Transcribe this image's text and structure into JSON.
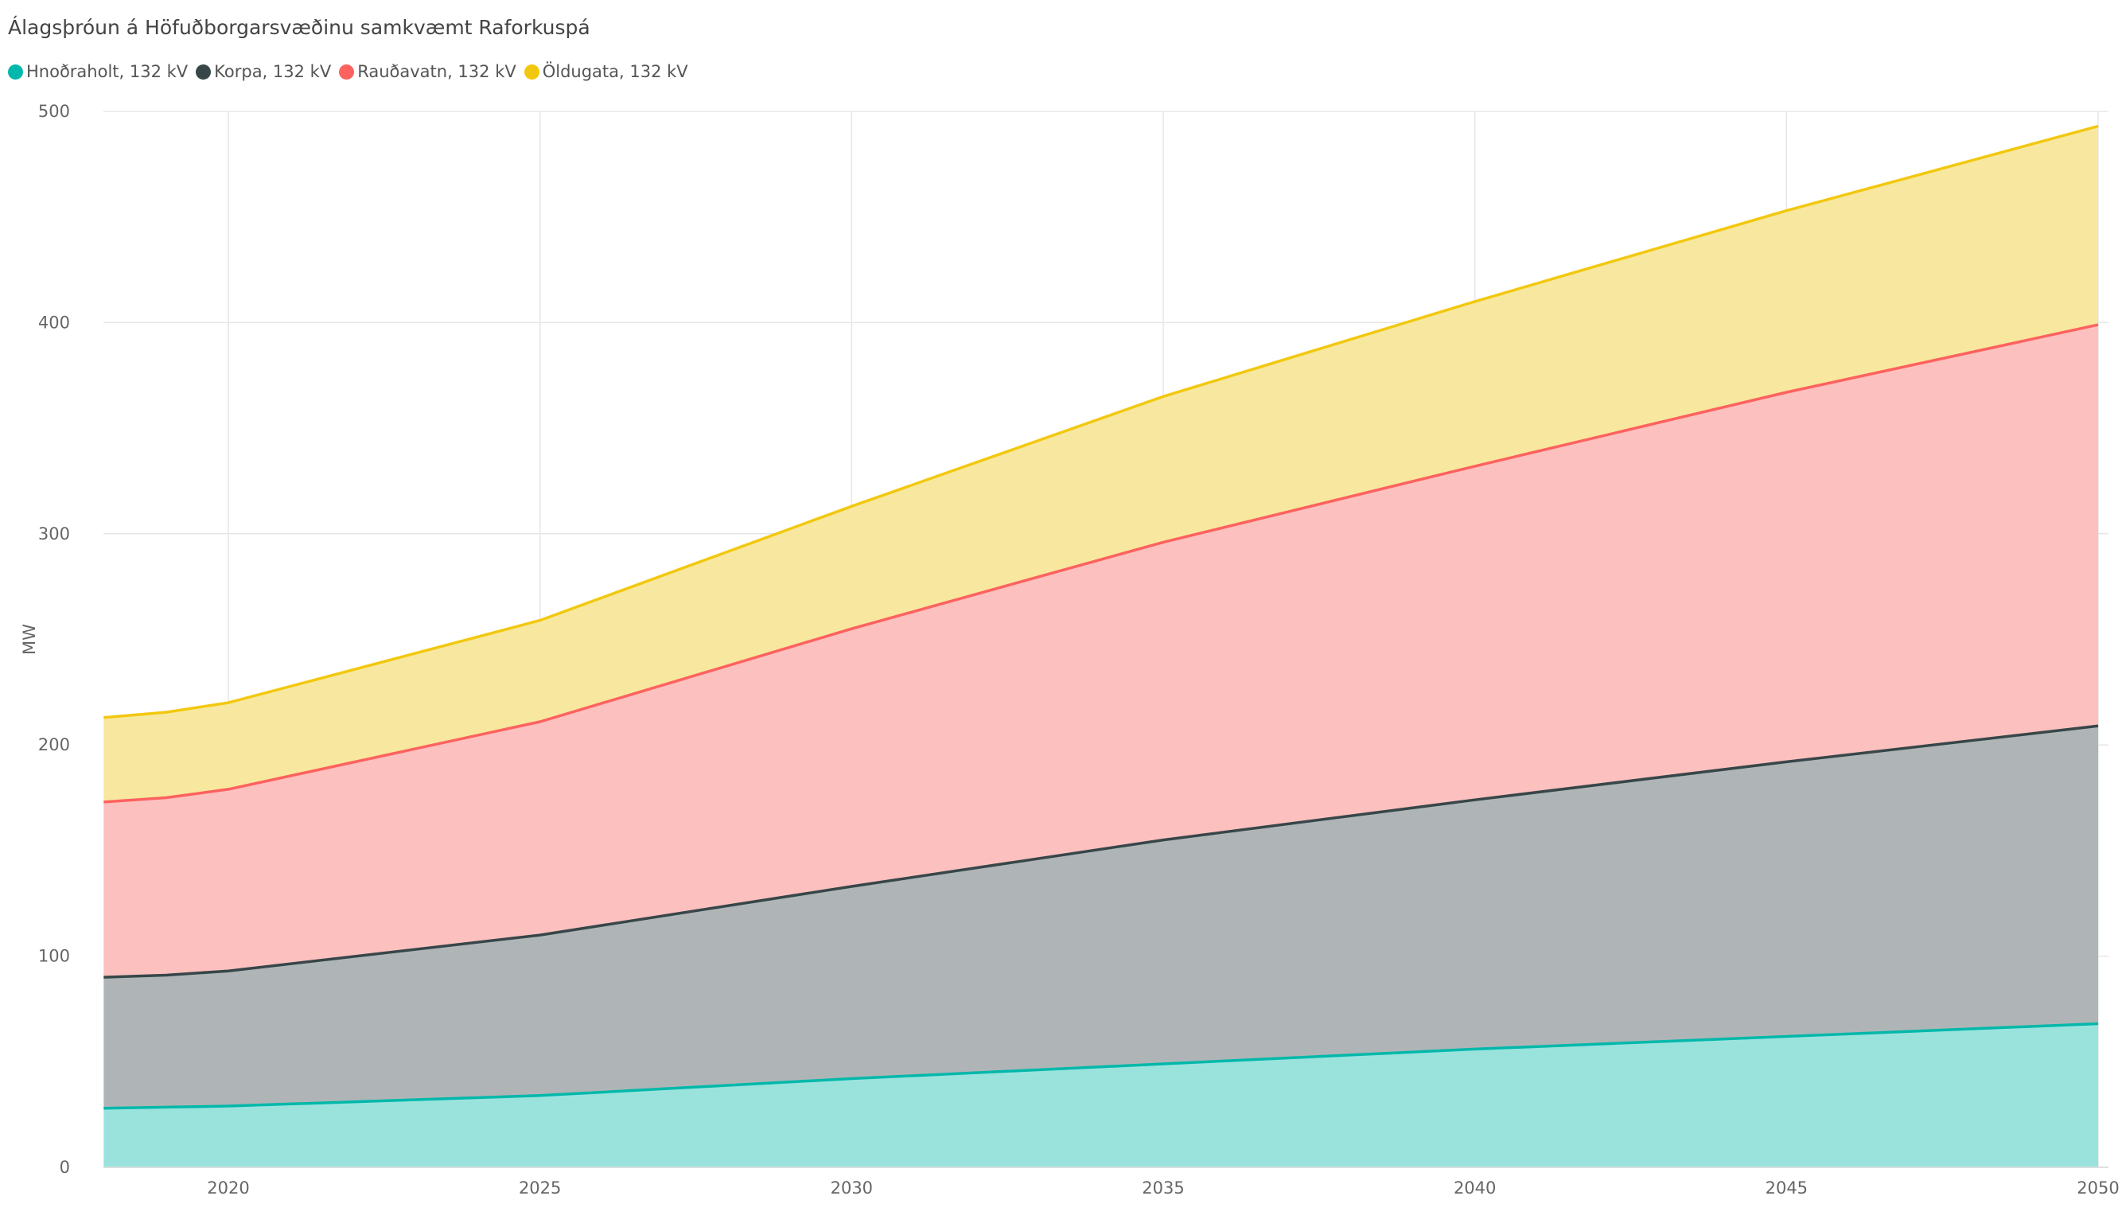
{
  "chart_data": {
    "type": "area",
    "stacked": true,
    "title": "Álagsþróun á Höfuðborgarsvæðinu samkvæmt Raforkuspá",
    "xlabel": "",
    "ylabel": "MW",
    "xlim": [
      2018,
      2050
    ],
    "ylim": [
      0,
      500
    ],
    "x_ticks": [
      2020,
      2025,
      2030,
      2035,
      2040,
      2045,
      2050
    ],
    "y_ticks": [
      0,
      100,
      200,
      300,
      400,
      500
    ],
    "grid": true,
    "legend_position": "top-left",
    "x": [
      2018,
      2019,
      2020,
      2025,
      2030,
      2035,
      2040,
      2045,
      2050
    ],
    "series": [
      {
        "name": "Hnoðraholt, 132 kV",
        "color": "#01B8AA",
        "fill": "#9AE3DD",
        "values": [
          28,
          28.5,
          29,
          34,
          42,
          49,
          56,
          62,
          68
        ]
      },
      {
        "name": "Korpa, 132 kV",
        "color": "#374649",
        "fill": "#AFB5B6",
        "values": [
          62,
          62.5,
          64,
          76,
          91,
          106,
          118,
          130,
          141
        ]
      },
      {
        "name": "Rauðavatn, 132 kV",
        "color": "#FD625E",
        "fill": "#FCC0BF",
        "values": [
          83,
          84,
          86,
          101,
          122,
          141,
          158,
          175,
          190
        ]
      },
      {
        "name": "Öldugata, 132 kV",
        "color": "#F2C80F",
        "fill": "#F8E89F",
        "values": [
          40,
          40.5,
          41,
          48,
          58,
          69,
          78,
          86,
          94
        ]
      }
    ]
  }
}
